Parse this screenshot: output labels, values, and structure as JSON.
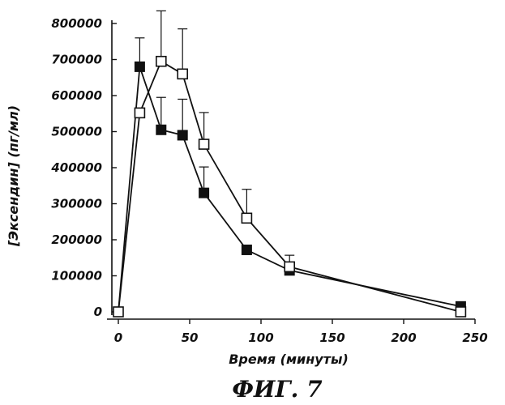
{
  "chart_data": {
    "type": "line",
    "xlabel": "Время (минуты)",
    "ylabel": "[Эксендин] (пг/мл)",
    "figure_label": "ФИГ. 7",
    "xlim": [
      0,
      250
    ],
    "ylim": [
      0,
      800000
    ],
    "x_ticks": [
      0,
      50,
      100,
      150,
      200,
      250
    ],
    "y_ticks": [
      0,
      100000,
      200000,
      300000,
      400000,
      500000,
      600000,
      700000,
      800000
    ],
    "x_tick_labels": [
      "0",
      "50",
      "100",
      "150",
      "200",
      "250"
    ],
    "y_tick_labels": [
      "0",
      "100000",
      "200000",
      "300000",
      "400000",
      "500000",
      "600000",
      "700000",
      "800000"
    ],
    "series": [
      {
        "marker": "filled-square",
        "x": [
          0,
          15,
          30,
          45,
          60,
          90,
          120,
          240
        ],
        "y": [
          0,
          680000,
          505000,
          490000,
          330000,
          172000,
          115000,
          15000
        ],
        "error_plus": [
          0,
          80000,
          90000,
          100000,
          72000,
          0,
          0,
          0
        ]
      },
      {
        "marker": "open-square",
        "x": [
          0,
          15,
          30,
          45,
          60,
          90,
          120,
          240
        ],
        "y": [
          0,
          552000,
          695000,
          660000,
          465000,
          260000,
          125000,
          0
        ],
        "error_plus": [
          0,
          0,
          140000,
          125000,
          88000,
          80000,
          32000,
          0
        ]
      }
    ]
  }
}
